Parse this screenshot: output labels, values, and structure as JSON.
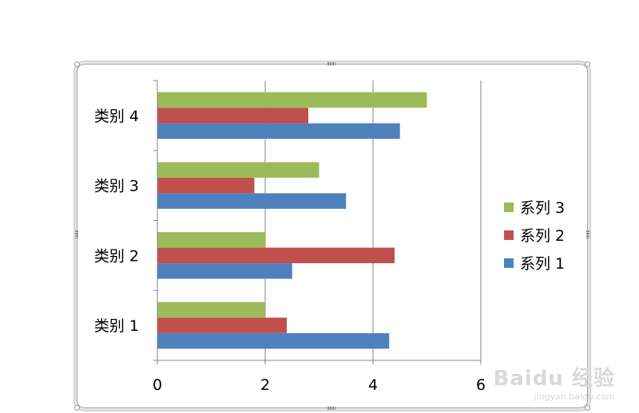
{
  "chart_data": {
    "type": "bar",
    "orientation": "horizontal",
    "categories": [
      "类别 1",
      "类别 2",
      "类别 3",
      "类别 4"
    ],
    "series": [
      {
        "name": "系列 1",
        "color": "#4F81BD",
        "values": [
          4.3,
          2.5,
          3.5,
          4.5
        ]
      },
      {
        "name": "系列 2",
        "color": "#C0504D",
        "values": [
          2.4,
          4.4,
          1.8,
          2.8
        ]
      },
      {
        "name": "系列 3",
        "color": "#9BBB59",
        "values": [
          2,
          2,
          3,
          5
        ]
      }
    ],
    "xlim": [
      0,
      6
    ],
    "xticks": [
      "0",
      "2",
      "4",
      "6"
    ],
    "grid": "vertical",
    "legend": "right",
    "legend_order": [
      "系列 3",
      "系列 2",
      "系列 1"
    ]
  },
  "watermark": {
    "brand": "Baidu 经验",
    "url": "jingyan.baidu.com"
  }
}
